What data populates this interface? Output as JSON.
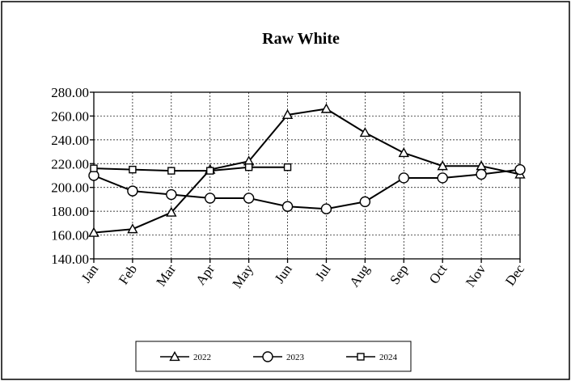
{
  "chart_data": {
    "type": "line",
    "title": "Raw White",
    "xlabel": "",
    "ylabel": "",
    "categories": [
      "Jan",
      "Feb",
      "Mar",
      "Apr",
      "May",
      "Jun",
      "Jul",
      "Aug",
      "Sep",
      "Oct",
      "Nov",
      "Dec"
    ],
    "y_ticks": [
      "140.00",
      "160.00",
      "180.00",
      "200.00",
      "220.00",
      "240.00",
      "260.00",
      "280.00"
    ],
    "ylim": [
      140,
      280
    ],
    "grid": true,
    "legend_position": "bottom",
    "series": [
      {
        "name": "2022",
        "marker": "triangle",
        "values": [
          162,
          165,
          179,
          215,
          222,
          261,
          266,
          246,
          229,
          218,
          218,
          211
        ]
      },
      {
        "name": "2023",
        "marker": "circle",
        "values": [
          210,
          197,
          194,
          191,
          191,
          184,
          182,
          188,
          208,
          208,
          211,
          215
        ]
      },
      {
        "name": "2024",
        "marker": "square",
        "values": [
          216,
          215,
          214,
          214,
          217,
          217,
          null,
          null,
          null,
          null,
          null,
          null
        ]
      }
    ]
  }
}
